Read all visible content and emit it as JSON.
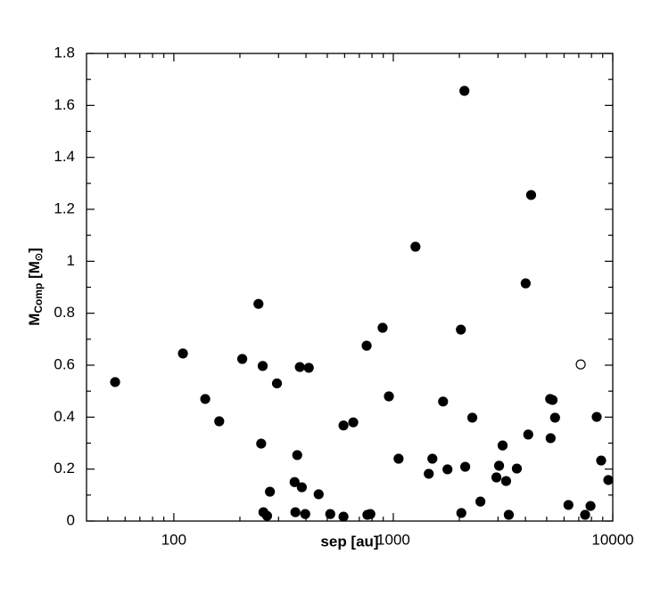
{
  "chart_data": {
    "type": "scatter",
    "xlabel": "sep [au]",
    "ylabel": [
      "M",
      "Comp",
      " [M",
      "⊙",
      "]"
    ],
    "xscale": "log",
    "xlim": [
      40,
      10000
    ],
    "xticks": [
      100,
      1000,
      10000
    ],
    "xminor": [
      50,
      60,
      70,
      80,
      90,
      200,
      300,
      400,
      500,
      600,
      700,
      800,
      900,
      2000,
      3000,
      4000,
      5000,
      6000,
      7000,
      8000,
      9000
    ],
    "ylim": [
      0,
      1.8
    ],
    "yticks": [
      0,
      0.2,
      0.4,
      0.6,
      0.8,
      1,
      1.2,
      1.4,
      1.6,
      1.8
    ],
    "yminor": [
      0.1,
      0.3,
      0.5,
      0.7,
      0.9,
      1.1,
      1.3,
      1.5,
      1.7
    ],
    "series": [
      {
        "color": "#000000",
        "marker": "filled",
        "x": [
          54,
          110,
          139,
          161,
          205,
          243,
          254,
          250,
          256,
          266,
          274,
          295,
          355,
          358,
          365,
          375,
          383,
          397,
          412,
          457,
          516,
          593,
          593,
          657,
          756,
          762,
          786,
          894,
          955,
          1057,
          1262,
          1451,
          1507,
          1686,
          1766,
          2032,
          2042,
          2109,
          2127,
          2291,
          2495,
          2951,
          3034,
          3148,
          3266,
          3359,
          3656,
          4010,
          4121,
          4246,
          5184,
          5318,
          5210,
          5458,
          6281,
          7483,
          7918,
          8452,
          8854,
          9546
        ],
        "values": [
          0.535,
          0.645,
          0.47,
          0.384,
          0.624,
          0.836,
          0.597,
          0.298,
          0.034,
          0.02,
          0.113,
          0.53,
          0.15,
          0.034,
          0.254,
          0.593,
          0.13,
          0.027,
          0.59,
          0.103,
          0.027,
          0.368,
          0.017,
          0.38,
          0.675,
          0.024,
          0.027,
          0.744,
          0.48,
          0.24,
          1.056,
          0.182,
          0.24,
          0.46,
          0.199,
          0.737,
          0.031,
          1.656,
          0.209,
          0.398,
          0.075,
          0.168,
          0.213,
          0.291,
          0.154,
          0.024,
          0.202,
          0.915,
          0.333,
          1.255,
          0.47,
          0.466,
          0.319,
          0.398,
          0.062,
          0.024,
          0.058,
          0.401,
          0.233,
          0.158
        ]
      },
      {
        "color": "#000000",
        "marker": "open",
        "x": [
          7145
        ],
        "values": [
          0.603
        ]
      }
    ]
  }
}
